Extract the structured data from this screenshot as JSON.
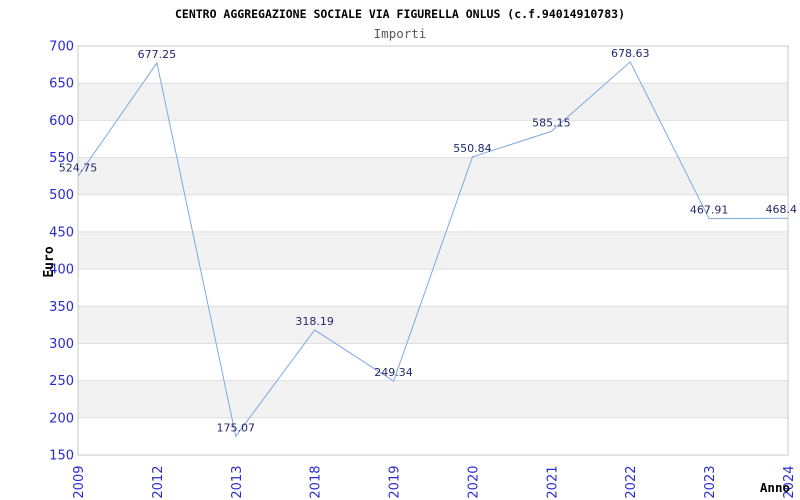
{
  "chart_data": {
    "type": "line",
    "title": "CENTRO AGGREGAZIONE SOCIALE VIA FIGURELLA ONLUS (c.f.94014910783)",
    "subtitle": "Importi",
    "xlabel": "Anno",
    "ylabel": "Euro",
    "categories": [
      "2009",
      "2012",
      "2013",
      "2018",
      "2019",
      "2020",
      "2021",
      "2022",
      "2023",
      "2024"
    ],
    "values": [
      524.75,
      677.25,
      175.07,
      318.19,
      249.34,
      550.84,
      585.15,
      678.63,
      467.91,
      468.4
    ],
    "data_labels": [
      "524.75",
      "677.25",
      "175.07",
      "318.19",
      "249.34",
      "550.84",
      "585.15",
      "678.63",
      "467.91",
      "468.4"
    ],
    "ylim": [
      150,
      700
    ],
    "ytick_step": 50,
    "ytick_labels": [
      "150",
      "200",
      "250",
      "300",
      "350",
      "400",
      "450",
      "500",
      "550",
      "600",
      "650",
      "700"
    ],
    "grid": true,
    "legend": "none",
    "alternating_row_bands": true,
    "colors": {
      "line": "#7fa8e0",
      "tick_label": "#2a2ad2",
      "data_label": "#24276e",
      "band": "#f2f2f2",
      "gridline": "#dfdfdf",
      "plot_border": "#c8c8c8",
      "title": "#000000",
      "subtitle": "#595959",
      "axis_title": "#000000",
      "background": "#ffffff"
    }
  }
}
